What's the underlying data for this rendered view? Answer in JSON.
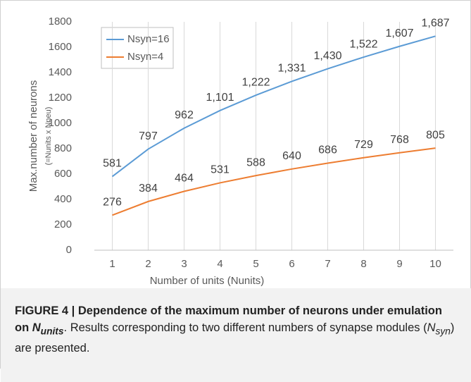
{
  "chart_data": {
    "type": "line",
    "x": [
      1,
      2,
      3,
      4,
      5,
      6,
      7,
      8,
      9,
      10
    ],
    "xlim": [
      0.5,
      10.5
    ],
    "xticks": [
      1,
      2,
      3,
      4,
      5,
      6,
      7,
      8,
      9,
      10
    ],
    "ylim": [
      0,
      1800
    ],
    "yticks": [
      0,
      200,
      400,
      600,
      800,
      1000,
      1200,
      1400,
      1600,
      1800
    ],
    "xlabel": "Number of units (Nunits)",
    "ylabel": [
      "Max.number of neurons",
      "(=Nunits x Nneu)"
    ],
    "grid": "x",
    "legend": "upper left",
    "series": [
      {
        "name": "Nsyn=16",
        "color": "#5b9bd5",
        "values": [
          581,
          797,
          962,
          1101,
          1222,
          1331,
          1430,
          1522,
          1607,
          1687
        ],
        "value_labels": [
          "581",
          "797",
          "962",
          "1,101",
          "1,222",
          "1,331",
          "1,430",
          "1,522",
          "1,607",
          "1,687"
        ]
      },
      {
        "name": "Nsyn=4",
        "color": "#ed7d31",
        "values": [
          276,
          384,
          464,
          531,
          588,
          640,
          686,
          729,
          768,
          805
        ]
      }
    ]
  },
  "caption": {
    "bold": "FIGURE 4 | Dependence of the maximum number of neurons under emulation on ",
    "bold_var": "N",
    "bold_sub": "units",
    "text1": ". Results corresponding to two different numbers of synapse modules (",
    "var": "N",
    "sub": "syn",
    "text2": ") are presented."
  }
}
